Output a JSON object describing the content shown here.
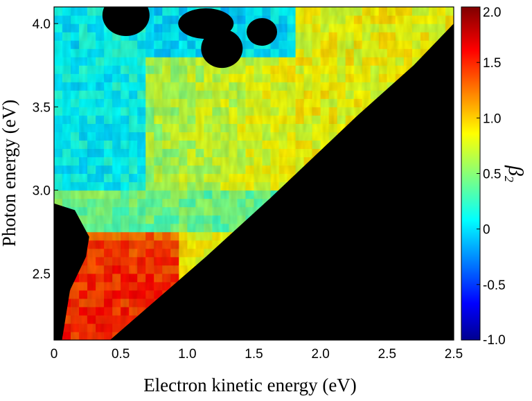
{
  "chart_data": {
    "type": "heatmap",
    "title": "",
    "xlabel": "Electron kinetic energy (eV)",
    "ylabel": "Photon energy (eV)",
    "xlim": [
      0,
      2.5
    ],
    "ylim": [
      2.1,
      4.1
    ],
    "x_ticks": [
      "0",
      "0.5",
      "1.0",
      "1.5",
      "2.0",
      "2.5",
      "2.5"
    ],
    "x_tick_values": [
      0,
      0.5,
      1.0,
      1.5,
      2.0,
      2.5,
      2.5
    ],
    "y_ticks": [
      "2.5",
      "3.0",
      "3.5",
      "4.0"
    ],
    "y_tick_values": [
      2.5,
      3.0,
      3.5,
      4.0
    ],
    "colorbar": {
      "label": "β",
      "label_subscript": "2",
      "range": [
        -1.0,
        2.0
      ],
      "ticks": [
        "-1.0",
        "-0.5",
        "0",
        "0.5",
        "1.0",
        "1.5",
        "2.0"
      ],
      "tick_values": [
        -1.0,
        -0.5,
        0,
        0.5,
        1.0,
        1.5,
        2.0
      ],
      "colormap": "jet"
    },
    "no_data_color": "#000000",
    "region_boundary": {
      "description_free_edge_points": [
        [
          0.35,
          2.1
        ],
        [
          0.95,
          2.6
        ],
        [
          1.35,
          2.95
        ],
        [
          1.9,
          3.45
        ],
        [
          2.25,
          3.75
        ],
        [
          2.6,
          4.1
        ]
      ],
      "left_void_points": [
        [
          0,
          2.92
        ],
        [
          0.13,
          2.88
        ],
        [
          0.22,
          2.72
        ],
        [
          0.2,
          2.6
        ],
        [
          0.1,
          2.4
        ],
        [
          0.05,
          2.1
        ],
        [
          0,
          2.1
        ]
      ],
      "left_edge_points": [
        [
          0.02,
          3.7
        ],
        [
          0.08,
          3.8
        ],
        [
          0.05,
          4.1
        ]
      ]
    },
    "features": [
      {
        "x": [
          0.05,
          0.75
        ],
        "y": [
          2.1,
          2.75
        ],
        "beta2": 1.5
      },
      {
        "x": [
          0.0,
          1.0
        ],
        "y": [
          2.75,
          3.0
        ],
        "beta2": 0.4
      },
      {
        "x": [
          0.0,
          0.6
        ],
        "y": [
          3.0,
          3.8
        ],
        "beta2": 0.1
      },
      {
        "x": [
          0.6,
          1.8
        ],
        "y": [
          3.0,
          3.8
        ],
        "beta2": 0.7
      },
      {
        "x": [
          0.6,
          1.4
        ],
        "y": [
          3.8,
          4.1
        ],
        "beta2": 0.0
      }
    ]
  }
}
